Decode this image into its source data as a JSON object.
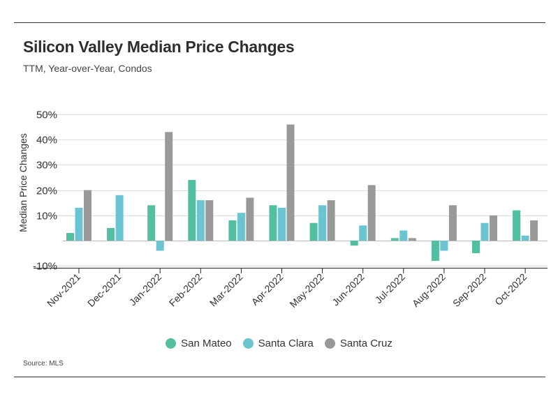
{
  "title": "Silicon Valley Median Price Changes",
  "subtitle": "TTM, Year-over-Year, Condos",
  "source": "Source:  MLS",
  "chart_data": {
    "type": "bar",
    "title": "Silicon Valley Median Price Changes",
    "subtitle": "TTM, Year-over-Year, Condos",
    "xlabel": "",
    "ylabel": "Median Price Changes",
    "ylim": [
      -12,
      50
    ],
    "yticks": [
      -10,
      10,
      20,
      30,
      40,
      50
    ],
    "ytick_labels": [
      "-10%",
      "10%",
      "20%",
      "30%",
      "40%",
      "50%"
    ],
    "grid": true,
    "legend_position": "bottom-center",
    "categories": [
      "Nov-2021",
      "Dec-2021",
      "Jan-2022",
      "Feb-2022",
      "Mar-2022",
      "Apr-2022",
      "May-2022",
      "Jun-2022",
      "Jul-2022",
      "Aug-2022",
      "Sep-2022",
      "Oct-2022"
    ],
    "series": [
      {
        "name": "San Mateo",
        "color": "#52bfa0",
        "values": [
          3,
          5,
          14,
          24,
          8,
          14,
          7,
          -2,
          1,
          -8,
          -5,
          12
        ]
      },
      {
        "name": "Santa Clara",
        "color": "#6cc4d0",
        "values": [
          13,
          18,
          -4,
          16,
          11,
          13,
          14,
          6,
          4,
          -4,
          7,
          2
        ]
      },
      {
        "name": "Santa Cruz",
        "color": "#999999",
        "values": [
          20,
          0,
          43,
          16,
          17,
          46,
          16,
          22,
          1,
          14,
          10,
          8
        ]
      }
    ]
  }
}
